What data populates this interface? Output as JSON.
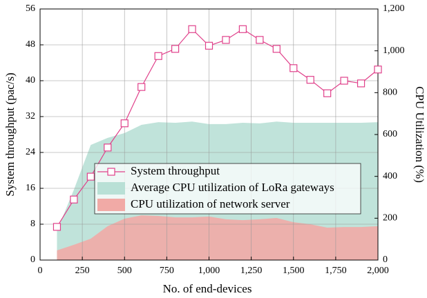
{
  "chart_data": {
    "type": "line-area",
    "xlabel": "No. of end-devices",
    "ylabel": "System throughput (pac/s)",
    "y2label": "CPU Utilization (%)",
    "x": [
      100,
      200,
      300,
      400,
      500,
      600,
      700,
      800,
      900,
      1000,
      1100,
      1200,
      1300,
      1400,
      1500,
      1600,
      1700,
      1800,
      1900,
      2000
    ],
    "series": [
      {
        "name": "System throughput",
        "color": "#e0408a",
        "kind": "line",
        "axis": "y",
        "values": [
          7.4,
          13.5,
          18.6,
          25.1,
          30.5,
          38.6,
          45.5,
          47.1,
          51.5,
          47.8,
          49.1,
          51.5,
          49.1,
          47.1,
          42.8,
          40.2,
          37.2,
          40,
          39.4,
          42.5
        ]
      },
      {
        "name": "Average CPU utilization of LoRa gateways",
        "color": "#b9e0d6",
        "kind": "area",
        "axis": "y2",
        "values": [
          140,
          336,
          550,
          584,
          607,
          646,
          659,
          656,
          662,
          650,
          650,
          656,
          653,
          662,
          656,
          656,
          656,
          656,
          656,
          659
        ]
      },
      {
        "name": "CPU utilization of network server",
        "color": "#f1aaa6",
        "kind": "area",
        "axis": "y2",
        "values": [
          46,
          73,
          102,
          162,
          198,
          214,
          211,
          204,
          204,
          208,
          195,
          191,
          195,
          201,
          181,
          171,
          155,
          158,
          158,
          162
        ]
      }
    ],
    "xlim": [
      0,
      2000
    ],
    "xticks": [
      0,
      250,
      500,
      750,
      {
        "value": 1000,
        "label": "1,000"
      },
      {
        "value": 1250,
        "label": "1,250"
      },
      {
        "value": 1500,
        "label": "1,500"
      },
      {
        "value": 1750,
        "label": "1,750"
      },
      {
        "value": 2000,
        "label": "2,000"
      }
    ],
    "ylim": [
      0,
      56
    ],
    "yticks": [
      0,
      8,
      16,
      24,
      32,
      40,
      48,
      56
    ],
    "y2lim": [
      0,
      1200
    ],
    "y2ticks": [
      0,
      200,
      400,
      600,
      800,
      {
        "value": 1000,
        "label": "1,000"
      },
      {
        "value": 1200,
        "label": "1,200"
      }
    ],
    "grid": true
  }
}
